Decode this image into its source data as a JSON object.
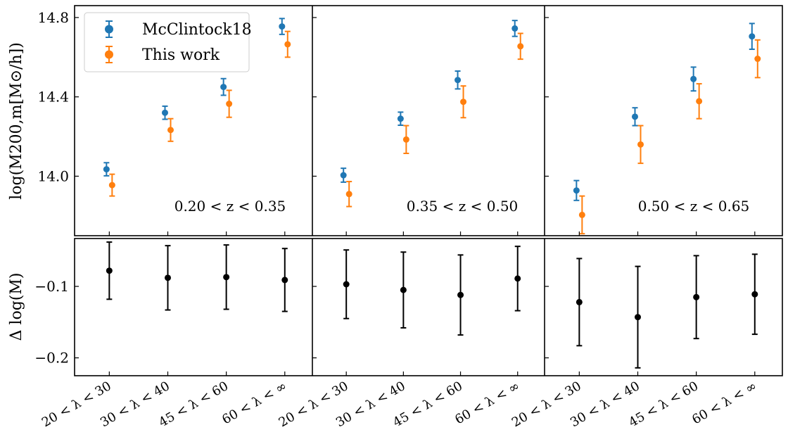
{
  "chart_data": {
    "type": "scatter",
    "categories": [
      "20 < λ < 30",
      "30 < λ < 40",
      "45 < λ < 60",
      "60 < λ < ∞"
    ],
    "top_ylabel": "log(M200,m[M⊙/h])",
    "bottom_ylabel": "Δ log(M)",
    "top_ylim": [
      13.7,
      14.86
    ],
    "top_yticks": [
      14.0,
      14.4,
      14.8
    ],
    "bottom_ylim": [
      -0.225,
      -0.033
    ],
    "bottom_yticks": [
      -0.1,
      -0.2
    ],
    "legend": {
      "placement": "top-left",
      "entries": [
        {
          "name": "McClintock18",
          "color": "#1f77b4"
        },
        {
          "name": "This work",
          "color": "#ff7f0e"
        }
      ]
    },
    "panels": [
      {
        "label": "0.20 < z < 0.35",
        "series": [
          {
            "name": "McClintock18",
            "color": "#1f77b4",
            "values": [
              14.035,
              14.32,
              14.45,
              14.755
            ],
            "err": [
              0.033,
              0.033,
              0.042,
              0.04
            ]
          },
          {
            "name": "This work",
            "color": "#ff7f0e",
            "values": [
              13.955,
              14.233,
              14.365,
              14.665
            ],
            "err": [
              0.055,
              0.057,
              0.068,
              0.065
            ]
          }
        ],
        "diff": {
          "color": "#000000",
          "values": [
            -0.078,
            -0.088,
            -0.087,
            -0.091
          ],
          "err": [
            0.04,
            0.045,
            0.045,
            0.044
          ]
        }
      },
      {
        "label": "0.35 < z < 0.50",
        "series": [
          {
            "name": "McClintock18",
            "color": "#1f77b4",
            "values": [
              14.005,
              14.29,
              14.485,
              14.745
            ],
            "err": [
              0.035,
              0.033,
              0.045,
              0.04
            ]
          },
          {
            "name": "This work",
            "color": "#ff7f0e",
            "values": [
              13.91,
              14.185,
              14.375,
              14.655
            ],
            "err": [
              0.063,
              0.07,
              0.08,
              0.065
            ]
          }
        ],
        "diff": {
          "color": "#000000",
          "values": [
            -0.097,
            -0.105,
            -0.112,
            -0.089
          ],
          "err": [
            0.048,
            0.053,
            0.056,
            0.045
          ]
        }
      },
      {
        "label": "0.50 < z < 0.65",
        "series": [
          {
            "name": "McClintock18",
            "color": "#1f77b4",
            "values": [
              13.928,
              14.3,
              14.49,
              14.705
            ],
            "err": [
              0.05,
              0.045,
              0.06,
              0.065
            ]
          },
          {
            "name": "This work",
            "color": "#ff7f0e",
            "values": [
              13.805,
              14.16,
              14.378,
              14.592
            ],
            "err": [
              0.095,
              0.095,
              0.088,
              0.095
            ]
          }
        ],
        "diff": {
          "color": "#000000",
          "values": [
            -0.122,
            -0.143,
            -0.115,
            -0.111
          ],
          "err": [
            0.061,
            0.071,
            0.058,
            0.056
          ]
        }
      }
    ]
  }
}
